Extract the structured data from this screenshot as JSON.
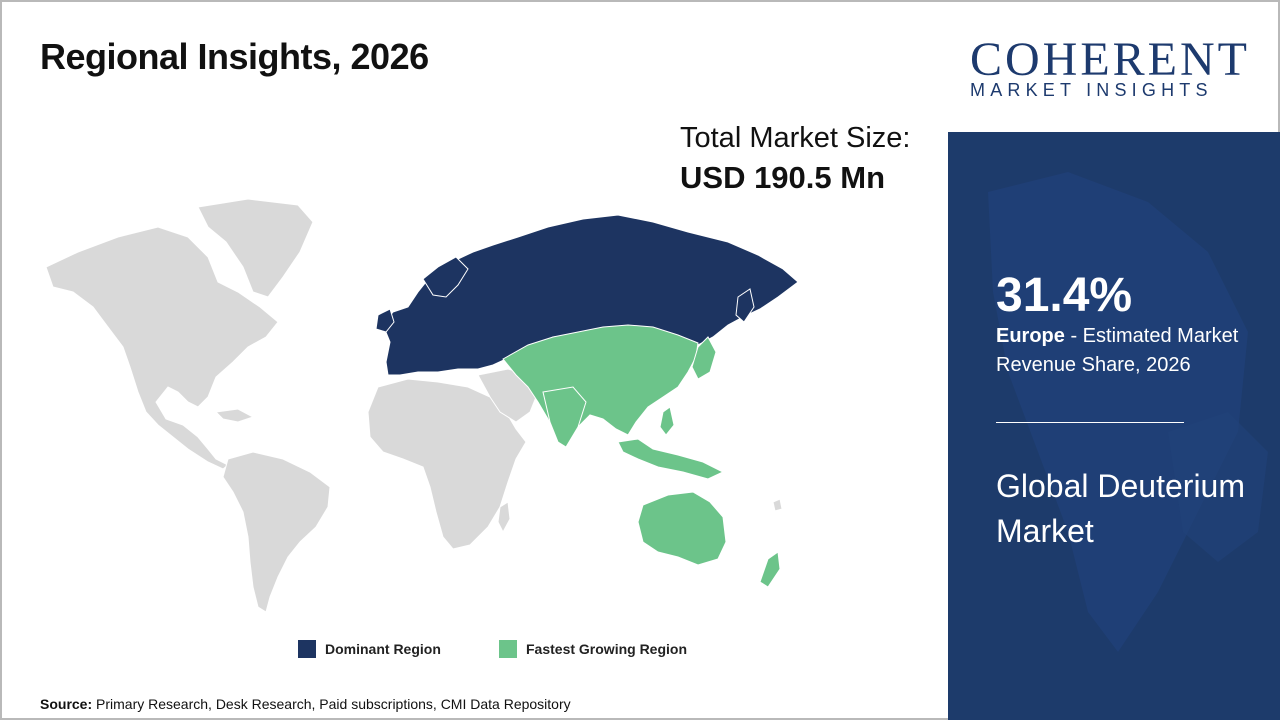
{
  "slide": {
    "title": "Regional Insights, 2026",
    "total_market_label": "Total Market Size:",
    "total_market_value": "USD 190.5 Mn"
  },
  "legend": {
    "dominant_label": "Dominant Region",
    "fastest_label": "Fastest Growing Region"
  },
  "colors": {
    "dominant": "#1d3461",
    "fastest": "#6cc48a",
    "other": "#d9d9d9",
    "panel": "#1d3b6b"
  },
  "source": {
    "prefix": "Source:",
    "text": " Primary Research, Desk Research, Paid subscriptions, CMI Data Repository"
  },
  "logo": {
    "word": "COHERENT",
    "sub": "MARKET INSIGHTS"
  },
  "panel": {
    "stat": "31.4%",
    "region": "Europe",
    "stat_desc": " - Estimated Market Revenue Share, 2026",
    "market_name": "Global Deuterium Market"
  }
}
